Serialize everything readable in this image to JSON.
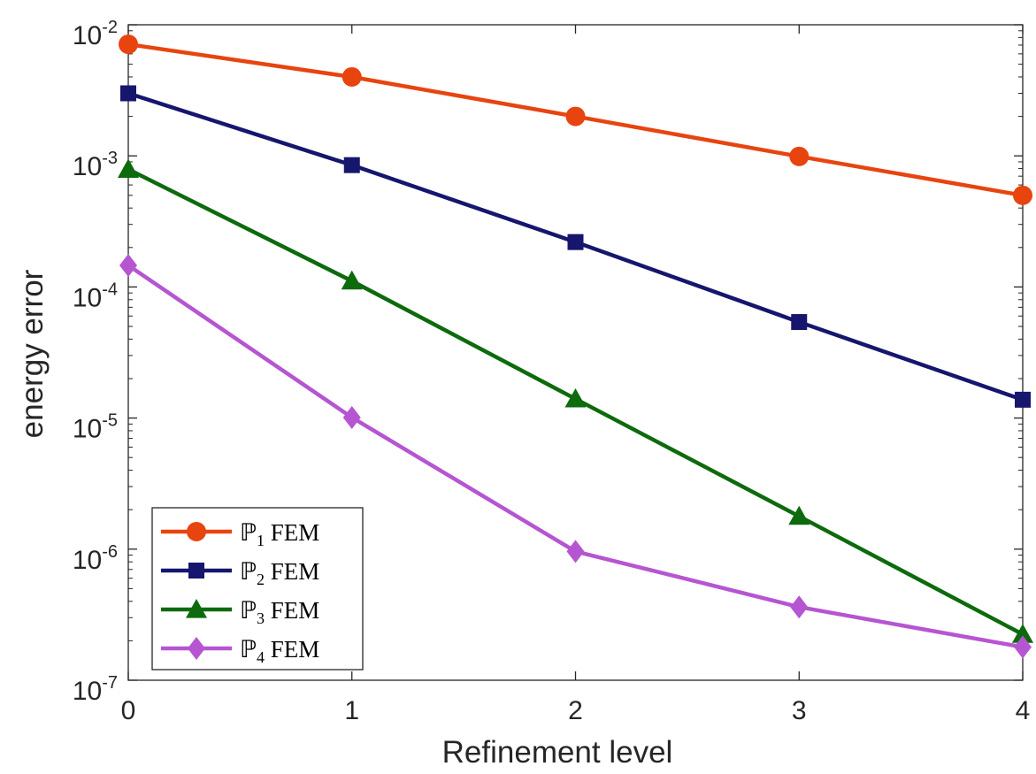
{
  "chart_data": {
    "type": "line",
    "xlabel": "Refinement level",
    "ylabel": "energy error",
    "x": [
      0,
      1,
      2,
      3,
      4
    ],
    "xlim": [
      0,
      4
    ],
    "ylim": [
      1e-07,
      0.01
    ],
    "yscale": "log",
    "x_ticks": [
      {
        "value": 0,
        "label": "0"
      },
      {
        "value": 1,
        "label": "1"
      },
      {
        "value": 2,
        "label": "2"
      },
      {
        "value": 3,
        "label": "3"
      },
      {
        "value": 4,
        "label": "4"
      }
    ],
    "y_ticks": [
      {
        "value": 1e-07,
        "base": "10",
        "exp": "-7"
      },
      {
        "value": 1e-06,
        "base": "10",
        "exp": "-6"
      },
      {
        "value": 1e-05,
        "base": "10",
        "exp": "-5"
      },
      {
        "value": 0.0001,
        "base": "10",
        "exp": "-4"
      },
      {
        "value": 0.001,
        "base": "10",
        "exp": "-3"
      },
      {
        "value": 0.01,
        "base": "10",
        "exp": "-2"
      }
    ],
    "grid": false,
    "legend_position": "bottom-left",
    "series": [
      {
        "name": "P1 FEM",
        "letter": "ℙ",
        "sub": "1",
        "suffix": "FEM",
        "color": "#e8440f",
        "marker": "circle",
        "values": [
          0.0071,
          0.004,
          0.002,
          0.00099,
          0.0005
        ]
      },
      {
        "name": "P2 FEM",
        "letter": "ℙ",
        "sub": "2",
        "suffix": "FEM",
        "color": "#16166e",
        "marker": "square",
        "values": [
          0.003,
          0.00085,
          0.00022,
          5.4e-05,
          1.38e-05
        ]
      },
      {
        "name": "P3 FEM",
        "letter": "ℙ",
        "sub": "3",
        "suffix": "FEM",
        "color": "#0d6a0d",
        "marker": "triangle",
        "values": [
          0.00079,
          0.000111,
          1.4e-05,
          1.78e-06,
          2.24e-07
        ]
      },
      {
        "name": "P4 FEM",
        "letter": "ℙ",
        "sub": "4",
        "suffix": "FEM",
        "color": "#b655d2",
        "marker": "diamond",
        "values": [
          0.000146,
          1.01e-05,
          9.6e-07,
          3.62e-07,
          1.79e-07
        ]
      }
    ]
  }
}
